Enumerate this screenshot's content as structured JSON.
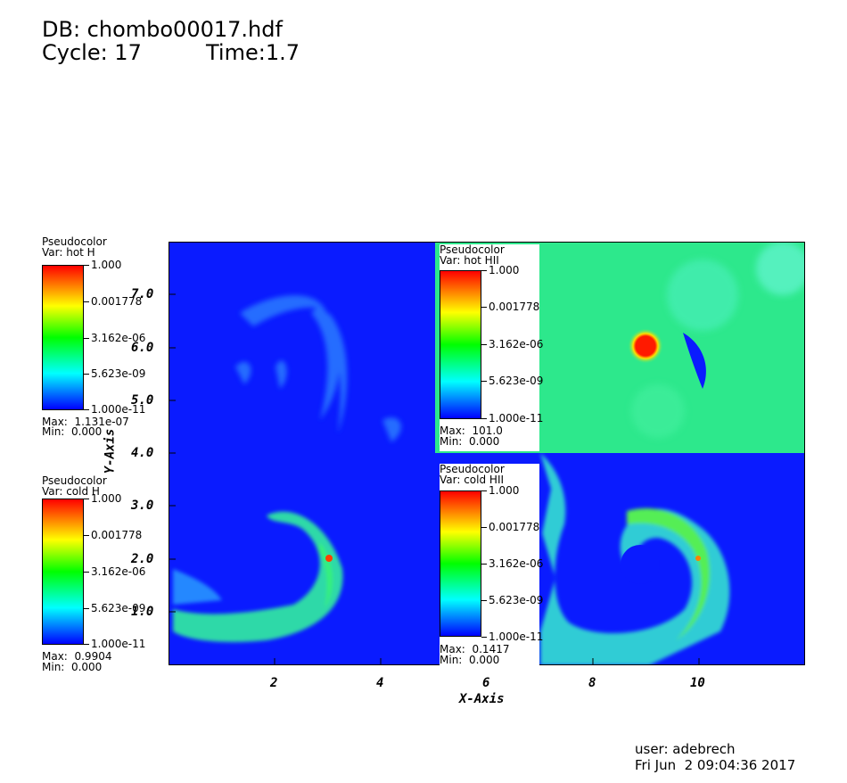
{
  "header": {
    "db_line": "DB: chombo00017.hdf",
    "cycle_label": "Cycle: 17",
    "time_label": "Time:1.7"
  },
  "footer": {
    "user": "user: adebrech",
    "datetime": "Fri Jun  2 09:04:36 2017"
  },
  "axes": {
    "x_label": "X-Axis",
    "y_label": "Y-Axis",
    "x_ticks": [
      "2",
      "4",
      "6",
      "8",
      "10"
    ],
    "y_ticks": [
      "7.0",
      "6.0",
      "5.0",
      "4.0",
      "3.0",
      "2.0",
      "1.0"
    ]
  },
  "legends": [
    {
      "type_label": "Pseudocolor",
      "var_label": "Var: hot H",
      "labels": [
        "1.000",
        "0.001778",
        "3.162e-06",
        "5.623e-09",
        "1.000e-11"
      ],
      "max_label": "Max:  1.131e-07",
      "min_label": "Min:  0.000"
    },
    {
      "type_label": "Pseudocolor",
      "var_label": "Var: hot HII",
      "labels": [
        "1.000",
        "0.001778",
        "3.162e-06",
        "5.623e-09",
        "1.000e-11"
      ],
      "max_label": "Max:  101.0",
      "min_label": "Min:  0.000"
    },
    {
      "type_label": "Pseudocolor",
      "var_label": "Var: cold H",
      "labels": [
        "1.000",
        "0.001778",
        "3.162e-06",
        "5.623e-09",
        "1.000e-11"
      ],
      "max_label": "Max:  0.9904",
      "min_label": "Min:  0.000"
    },
    {
      "type_label": "Pseudocolor",
      "var_label": "Var: cold HII",
      "labels": [
        "1.000",
        "0.001778",
        "3.162e-06",
        "5.623e-09",
        "1.000e-11"
      ],
      "max_label": "Max:  0.1417",
      "min_label": "Min:  0.000"
    }
  ],
  "colors": {
    "field_blue": "#0a1bff",
    "hot_green": "#2de88c",
    "core_red": "#ff1a00"
  }
}
